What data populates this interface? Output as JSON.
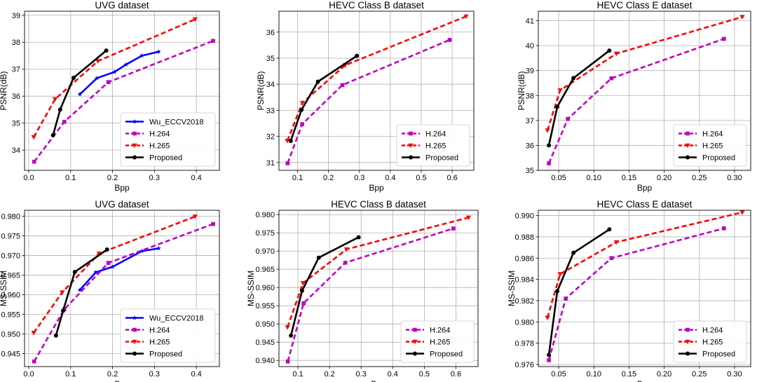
{
  "chart_data": [
    {
      "type": "line",
      "title": "UVG dataset",
      "xlabel": "Bpp",
      "ylabel": "PSNR(dB)",
      "xlim": [
        -0.01,
        0.455
      ],
      "ylim": [
        33.25,
        39.15
      ],
      "xticks": [
        0.0,
        0.1,
        0.2,
        0.3,
        0.4
      ],
      "xtick_labels": [
        "0.0",
        "0.1",
        "0.2",
        "0.3",
        "0.4"
      ],
      "yticks": [
        34,
        35,
        36,
        37,
        38,
        39
      ],
      "ytick_labels": [
        "34",
        "35",
        "36",
        "37",
        "38",
        "39"
      ],
      "grid": true,
      "legend_position": "lower-right",
      "series": [
        {
          "name": "Wu_ECCV2018",
          "color": "#0000ff",
          "dash": "solid",
          "marker": "star",
          "x": [
            0.122,
            0.163,
            0.205,
            0.232,
            0.27,
            0.31
          ],
          "y": [
            36.07,
            36.67,
            36.9,
            37.17,
            37.5,
            37.65
          ]
        },
        {
          "name": "H.264",
          "color": "#bf00bf",
          "dash": "dashed",
          "marker": "square",
          "x": [
            0.013,
            0.085,
            0.19,
            0.44
          ],
          "y": [
            33.57,
            35.05,
            36.52,
            38.05
          ]
        },
        {
          "name": "H.265",
          "color": "#ff0000",
          "dash": "dashed",
          "marker": "triangle-down",
          "x": [
            0.012,
            0.063,
            0.165,
            0.397
          ],
          "y": [
            34.48,
            35.89,
            37.3,
            38.85
          ]
        },
        {
          "name": "Proposed",
          "color": "#000000",
          "dash": "solid",
          "marker": "circle",
          "x": [
            0.058,
            0.075,
            0.107,
            0.185
          ],
          "y": [
            34.55,
            35.5,
            36.68,
            37.69
          ]
        }
      ]
    },
    {
      "type": "line",
      "title": "HEVC Class B dataset",
      "xlabel": "Bpp",
      "ylabel": "PSNR(dB)",
      "xlim": [
        0.04,
        0.67
      ],
      "ylim": [
        30.7,
        36.8
      ],
      "xticks": [
        0.1,
        0.2,
        0.3,
        0.4,
        0.5,
        0.6
      ],
      "xtick_labels": [
        "0.1",
        "0.2",
        "0.3",
        "0.4",
        "0.5",
        "0.6"
      ],
      "yticks": [
        31,
        32,
        33,
        34,
        35,
        36
      ],
      "ytick_labels": [
        "31",
        "32",
        "33",
        "34",
        "35",
        "36"
      ],
      "grid": true,
      "legend_position": "lower-right",
      "series": [
        {
          "name": "H.264",
          "color": "#bf00bf",
          "dash": "dashed",
          "marker": "square",
          "x": [
            0.068,
            0.115,
            0.245,
            0.592
          ],
          "y": [
            30.97,
            32.47,
            33.97,
            35.7
          ]
        },
        {
          "name": "H.265",
          "color": "#ff0000",
          "dash": "dashed",
          "marker": "triangle-down",
          "x": [
            0.067,
            0.116,
            0.254,
            0.645
          ],
          "y": [
            31.83,
            33.29,
            34.73,
            36.6
          ]
        },
        {
          "name": "Proposed",
          "color": "#000000",
          "dash": "solid",
          "marker": "circle",
          "x": [
            0.078,
            0.113,
            0.166,
            0.292
          ],
          "y": [
            31.83,
            33.02,
            34.1,
            35.09
          ]
        }
      ]
    },
    {
      "type": "line",
      "title": "HEVC Class E dataset",
      "xlabel": "Bpp",
      "ylabel": "PSNR(dB)",
      "xlim": [
        0.021,
        0.323
      ],
      "ylim": [
        35.0,
        41.38
      ],
      "xticks": [
        0.05,
        0.1,
        0.15,
        0.2,
        0.25,
        0.3
      ],
      "xtick_labels": [
        "0.05",
        "0.10",
        "0.15",
        "0.20",
        "0.25",
        "0.30"
      ],
      "yticks": [
        35,
        36,
        37,
        38,
        39,
        40,
        41
      ],
      "ytick_labels": [
        "35",
        "36",
        "37",
        "38",
        "39",
        "40",
        "41"
      ],
      "grid": true,
      "legend_position": "lower-right",
      "series": [
        {
          "name": "H.264",
          "color": "#bf00bf",
          "dash": "dashed",
          "marker": "square",
          "x": [
            0.036,
            0.063,
            0.125,
            0.285
          ],
          "y": [
            35.28,
            37.06,
            38.69,
            40.27
          ]
        },
        {
          "name": "H.265",
          "color": "#ff0000",
          "dash": "dashed",
          "marker": "triangle-down",
          "x": [
            0.034,
            0.052,
            0.132,
            0.311
          ],
          "y": [
            36.6,
            38.21,
            39.68,
            41.15
          ]
        },
        {
          "name": "Proposed",
          "color": "#000000",
          "dash": "solid",
          "marker": "circle",
          "x": [
            0.036,
            0.048,
            0.071,
            0.122
          ],
          "y": [
            36.0,
            37.55,
            38.7,
            39.8
          ]
        }
      ]
    },
    {
      "type": "line",
      "title": "UVG dataset",
      "xlabel": "Bpp",
      "ylabel": "MS-SSIM",
      "xlim": [
        -0.01,
        0.455
      ],
      "ylim": [
        0.9417,
        0.9815
      ],
      "xticks": [
        0.0,
        0.1,
        0.2,
        0.3,
        0.4
      ],
      "xtick_labels": [
        "0.0",
        "0.1",
        "0.2",
        "0.3",
        "0.4"
      ],
      "yticks": [
        0.945,
        0.95,
        0.955,
        0.96,
        0.965,
        0.97,
        0.975,
        0.98
      ],
      "ytick_labels": [
        "0.945",
        "0.950",
        "0.955",
        "0.960",
        "0.965",
        "0.970",
        "0.975",
        "0.980"
      ],
      "grid": true,
      "legend_position": "lower-right",
      "series": [
        {
          "name": "Wu_ECCV2018",
          "color": "#0000ff",
          "dash": "solid",
          "marker": "star",
          "x": [
            0.122,
            0.16,
            0.2,
            0.27,
            0.31
          ],
          "y": [
            0.9612,
            0.9657,
            0.9671,
            0.9711,
            0.9718
          ]
        },
        {
          "name": "H.264",
          "color": "#bf00bf",
          "dash": "dashed",
          "marker": "square",
          "x": [
            0.013,
            0.085,
            0.19,
            0.44
          ],
          "y": [
            0.943,
            0.9563,
            0.9681,
            0.978
          ]
        },
        {
          "name": "H.265",
          "color": "#ff0000",
          "dash": "dashed",
          "marker": "triangle-down",
          "x": [
            0.012,
            0.08,
            0.168,
            0.397
          ],
          "y": [
            0.9503,
            0.9606,
            0.9705,
            0.9799
          ]
        },
        {
          "name": "Proposed",
          "color": "#000000",
          "dash": "solid",
          "marker": "circle",
          "x": [
            0.065,
            0.082,
            0.11,
            0.187
          ],
          "y": [
            0.9496,
            0.9559,
            0.9658,
            0.9715
          ]
        }
      ]
    },
    {
      "type": "line",
      "title": "HEVC Class B dataset",
      "xlabel": "Bpp",
      "ylabel": "MS-SSIM",
      "xlim": [
        0.04,
        0.67
      ],
      "ylim": [
        0.9383,
        0.9812
      ],
      "xticks": [
        0.1,
        0.2,
        0.3,
        0.4,
        0.5,
        0.6
      ],
      "xtick_labels": [
        "0.1",
        "0.2",
        "0.3",
        "0.4",
        "0.5",
        "0.6"
      ],
      "yticks": [
        0.94,
        0.945,
        0.95,
        0.955,
        0.96,
        0.965,
        0.97,
        0.975,
        0.98
      ],
      "ytick_labels": [
        "0.940",
        "0.945",
        "0.950",
        "0.955",
        "0.960",
        "0.965",
        "0.970",
        "0.975",
        "0.980"
      ],
      "grid": true,
      "legend_position": "lower-right",
      "series": [
        {
          "name": "H.264",
          "color": "#bf00bf",
          "dash": "dashed",
          "marker": "square",
          "x": [
            0.068,
            0.118,
            0.25,
            0.592
          ],
          "y": [
            0.9397,
            0.9557,
            0.9668,
            0.9762
          ]
        },
        {
          "name": "H.265",
          "color": "#ff0000",
          "dash": "dashed",
          "marker": "triangle-down",
          "x": [
            0.067,
            0.116,
            0.254,
            0.64
          ],
          "y": [
            0.9491,
            0.9612,
            0.9705,
            0.9792
          ]
        },
        {
          "name": "Proposed",
          "color": "#000000",
          "dash": "solid",
          "marker": "circle",
          "x": [
            0.078,
            0.113,
            0.166,
            0.292
          ],
          "y": [
            0.9468,
            0.9591,
            0.9682,
            0.9738
          ]
        }
      ]
    },
    {
      "type": "line",
      "title": "HEVC Class E dataset",
      "xlabel": "Bpp",
      "ylabel": "MS-SSIM",
      "xlim": [
        0.021,
        0.323
      ],
      "ylim": [
        0.9758,
        0.9905
      ],
      "xticks": [
        0.05,
        0.1,
        0.15,
        0.2,
        0.25,
        0.3
      ],
      "xtick_labels": [
        "0.05",
        "0.10",
        "0.15",
        "0.20",
        "0.25",
        "0.30"
      ],
      "yticks": [
        0.976,
        0.978,
        0.98,
        0.982,
        0.984,
        0.986,
        0.988,
        0.99
      ],
      "ytick_labels": [
        "0.976",
        "0.978",
        "0.980",
        "0.982",
        "0.984",
        "0.986",
        "0.988",
        "0.990"
      ],
      "grid": true,
      "legend_position": "lower-right",
      "series": [
        {
          "name": "H.264",
          "color": "#bf00bf",
          "dash": "dashed",
          "marker": "square",
          "x": [
            0.036,
            0.06,
            0.125,
            0.285
          ],
          "y": [
            0.9764,
            0.9822,
            0.986,
            0.9888
          ]
        },
        {
          "name": "H.265",
          "color": "#ff0000",
          "dash": "dashed",
          "marker": "triangle-down",
          "x": [
            0.034,
            0.052,
            0.132,
            0.311
          ],
          "y": [
            0.9804,
            0.9845,
            0.9875,
            0.9903
          ]
        },
        {
          "name": "Proposed",
          "color": "#000000",
          "dash": "solid",
          "marker": "circle",
          "x": [
            0.036,
            0.048,
            0.071,
            0.122
          ],
          "y": [
            0.9769,
            0.9829,
            0.9865,
            0.9887
          ]
        }
      ]
    }
  ]
}
